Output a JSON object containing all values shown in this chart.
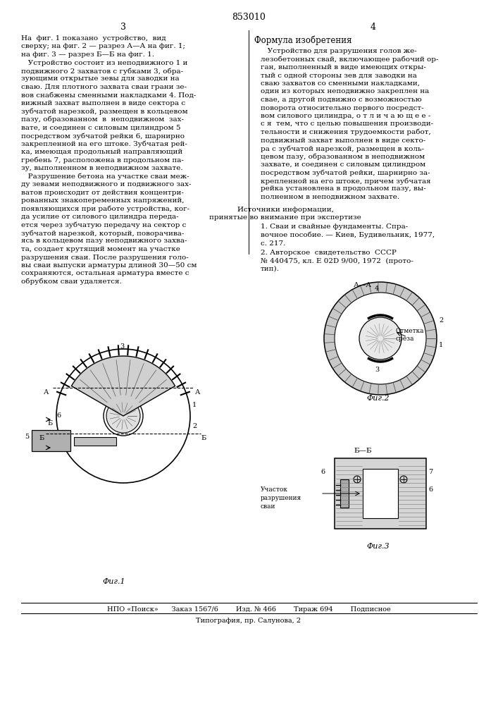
{
  "patent_number": "853010",
  "page_left": "3",
  "page_right": "4",
  "bg_color": "#ffffff",
  "text_color": "#000000",
  "left_column_text": [
    "На  фиг. 1 показано  устройство,  вид",
    "сверху; на фиг. 2 — разрез А—А на фиг. 1;",
    "на фиг. 3 — разрез Б—Б на фиг. 1.",
    "   Устройство состоит из неподвижного 1 и",
    "подвижного 2 захватов с губками 3, обра-",
    "зующими открытые зевы для заводки на",
    "сваю. Для плотного захвата сваи грани зе-",
    "вов снабжены сменными накладками 4. Под-",
    "вижный захват выполнен в виде сектора с",
    "зубчатой нарезкой, размещен в кольцевом",
    "пазу, образованном  в  неподвижном  зах-",
    "вате, и соединен с силовым цилиндром 5",
    "посредством зубчатой рейки 6, шарнирно",
    "закрепленной на его штоке. Зубчатая рей-",
    "ка, имеющая продольный направляющий",
    "гребень 7, расположена в продольном па-",
    "зу, выполненном в неподвижном захвате.",
    "   Разрушение бетона на участке сваи меж-",
    "ду зевами неподвижного и подвижного зах-",
    "ватов происходит от действия концентри-",
    "рованных знакопеременных напряжений,",
    "появляющихся при работе устройства, ког-",
    "да усилие от силового цилиндра переда-",
    "ется через зубчатую передачу на сектор с",
    "зубчатой нарезкой, который, поворачива-",
    "ясь в кольцевом пазу неподвижного захва-",
    "та, создает крутящий момент на участке",
    "разрушения сваи. После разрушения голо-",
    "вы сваи выпуски арматуры длиной 30—50 см",
    "сохраняются, остальная арматура вместе с",
    "обрубком сваи удаляется."
  ],
  "right_column_text_title": "Формула изобретения",
  "right_column_text": [
    "   Устройство для разрушения голов же-",
    "лезобетонных свай, включающее рабочий ор-",
    "ган, выполненный в виде имеющих откры-",
    "тый с одной стороны зев для заводки на",
    "сваю захватов со сменными накладками,",
    "один из которых неподвижно закреплен на",
    "свае, а другой подвижно с возможностью",
    "поворота относительно первого посредст-",
    "вом силового цилиндра, о т л и ч а ю щ е е -",
    "с я  тем, что с целью повышения производи-",
    "тельности и снижения трудоемкости работ,",
    "подвижный захват выполнен в виде секто-",
    "ра с зубчатой нарезкой, размещен в коль-",
    "цевом пазу, образованном в неподвижном",
    "захвате, и соединен с силовым цилиндром",
    "посредством зубчатой рейки, шарнирно за-",
    "крепленной на его штоке, причем зубчатая",
    "рейка установлена в продольном пазу, вы-",
    "полненном в неподвижном захвате."
  ],
  "sources_title": "Источники информации,",
  "sources_subtitle": "принятые во внимание при экспертизе",
  "source1": "1. Сваи и свайные фундаменты. Спра-",
  "source1b": "вочное пособие. — Киев, Будивельник, 1977,",
  "source1c": "с. 217.",
  "source2": "2. Авторское  свидетельство  СССР",
  "source2b": "№ 440475, кл. Е 02D 9/00, 1972  (прото-",
  "source2c": "тип).",
  "footer_line1": "НПО «Поиск»      Заказ 1567/6        Изд. № 466        Тираж 694        Подписное",
  "footer_line2": "Типография, пр. Салунова, 2"
}
